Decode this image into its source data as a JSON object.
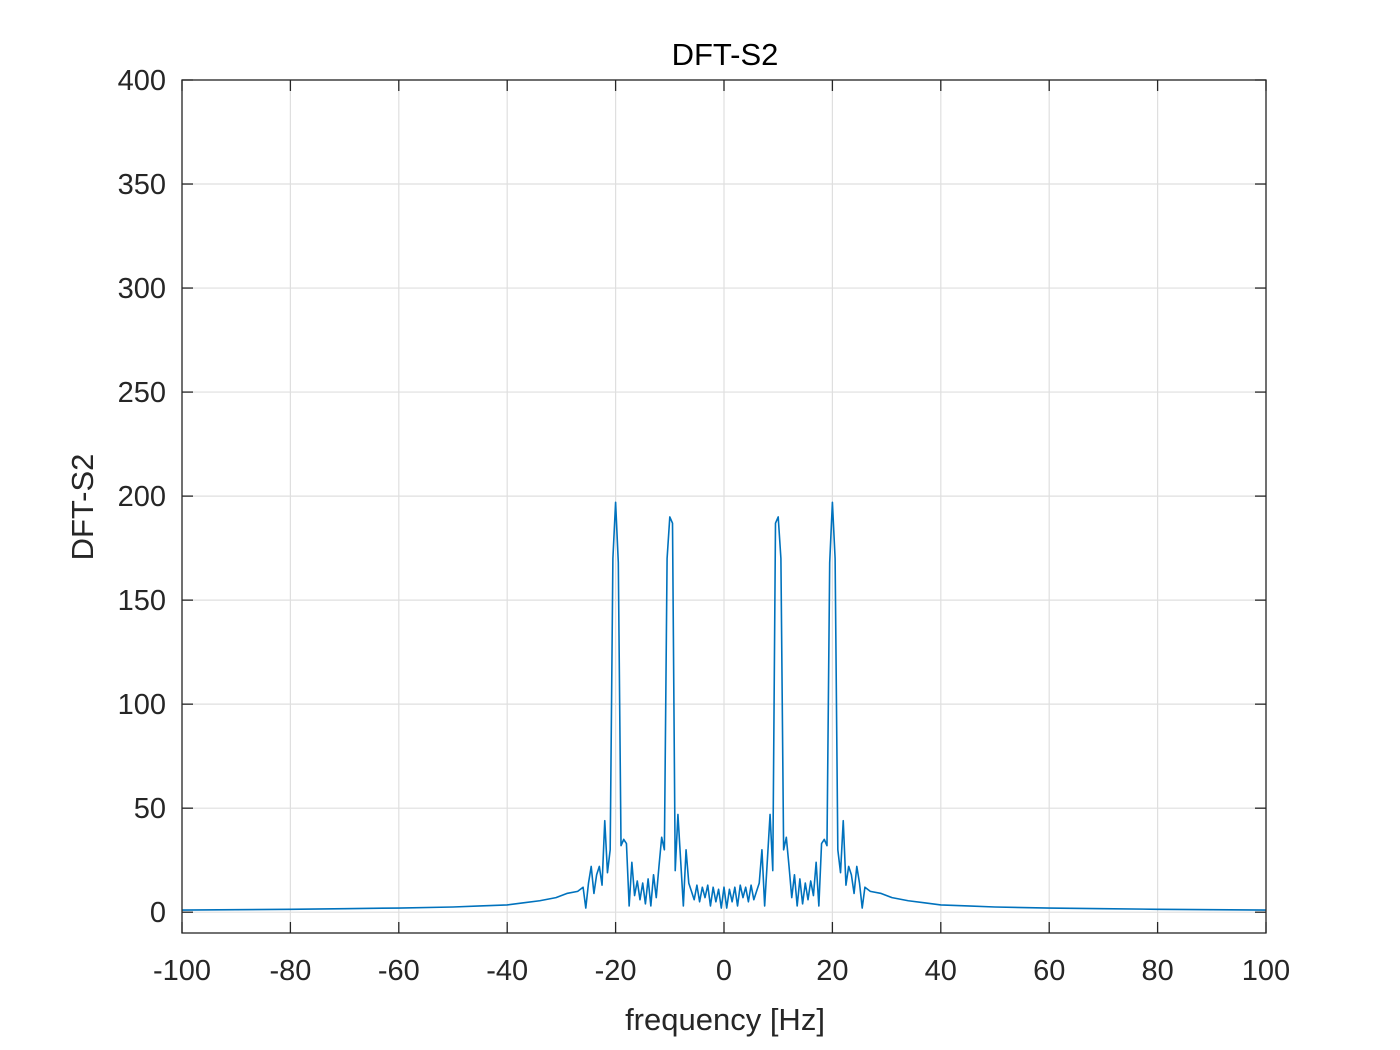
{
  "chart_data": {
    "type": "line",
    "title": "DFT-S2",
    "xlabel": "frequency [Hz]",
    "ylabel": "DFT-S2",
    "xlim": [
      -100,
      100
    ],
    "ylim": [
      -10,
      400
    ],
    "xticks": [
      -100,
      -80,
      -60,
      -40,
      -20,
      0,
      20,
      40,
      60,
      80,
      100
    ],
    "yticks": [
      0,
      50,
      100,
      150,
      200,
      250,
      300,
      350,
      400
    ],
    "xtick_labels": [
      "-100",
      "-80",
      "-60",
      "-40",
      "-20",
      "0",
      "20",
      "40",
      "60",
      "80",
      "100"
    ],
    "ytick_labels": [
      "0",
      "50",
      "100",
      "150",
      "200",
      "250",
      "300",
      "350",
      "400"
    ],
    "grid": true,
    "line_color": "#0072BD",
    "series": [
      {
        "x": [
          -100,
          -90,
          -80,
          -70,
          -60,
          -50,
          -45,
          -40,
          -37,
          -34,
          -31,
          -29,
          -27,
          -26,
          -25.5,
          -25,
          -24.5,
          -24,
          -23.5,
          -23,
          -22.5,
          -22,
          -21.5,
          -21,
          -20.5,
          -20,
          -19.5,
          -19,
          -18.5,
          -18,
          -17.5,
          -17,
          -16.5,
          -16,
          -15.5,
          -15,
          -14.5,
          -14,
          -13.5,
          -13,
          -12.5,
          -12,
          -11.5,
          -11,
          -10.5,
          -10,
          -9.5,
          -9,
          -8.5,
          -8,
          -7.5,
          -7,
          -6.5,
          -6,
          -5.5,
          -5,
          -4.5,
          -4,
          -3.5,
          -3,
          -2.5,
          -2,
          -1.5,
          -1,
          -0.5,
          0,
          0.5,
          1,
          1.5,
          2,
          2.5,
          3,
          3.5,
          4,
          4.5,
          5,
          5.5,
          6,
          6.5,
          7,
          7.5,
          8,
          8.5,
          9,
          9.5,
          10,
          10.5,
          11,
          11.5,
          12,
          12.5,
          13,
          13.5,
          14,
          14.5,
          15,
          15.5,
          16,
          16.5,
          17,
          17.5,
          18,
          18.5,
          19,
          19.5,
          20,
          20.5,
          21,
          21.5,
          22,
          22.5,
          23,
          23.5,
          24,
          24.5,
          25,
          25.5,
          26,
          27,
          29,
          31,
          34,
          37,
          40,
          45,
          50,
          60,
          70,
          80,
          90,
          100
        ],
        "y": [
          1,
          1.2,
          1.4,
          1.7,
          2,
          2.5,
          3,
          3.5,
          4.5,
          5.5,
          7,
          9,
          10,
          12,
          2,
          14,
          22,
          9,
          18,
          22,
          13,
          44,
          19,
          30,
          170,
          197,
          168,
          32,
          35,
          33,
          3,
          24,
          8,
          15,
          6,
          14,
          4,
          16,
          3,
          18,
          7,
          22,
          36,
          30,
          170,
          190,
          187,
          20,
          47,
          25,
          3,
          30,
          14,
          10,
          6,
          13,
          5,
          12,
          7,
          13,
          3,
          12,
          5,
          11,
          2,
          12,
          2,
          11,
          5,
          12,
          3,
          13,
          7,
          12,
          5,
          13,
          6,
          10,
          14,
          30,
          3,
          25,
          47,
          20,
          187,
          190,
          170,
          30,
          36,
          22,
          7,
          18,
          3,
          16,
          4,
          14,
          6,
          15,
          8,
          24,
          3,
          33,
          35,
          32,
          168,
          197,
          170,
          30,
          19,
          44,
          13,
          22,
          18,
          9,
          22,
          14,
          2,
          12,
          10,
          9,
          7,
          5.5,
          4.5,
          3.5,
          3,
          2.5,
          2,
          1.7,
          1.4,
          1.2,
          1
        ]
      }
    ]
  }
}
